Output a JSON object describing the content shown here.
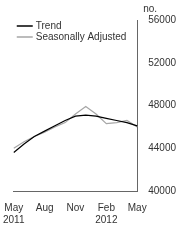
{
  "chart_data": {
    "type": "line",
    "y_label": "no.",
    "categories": [
      "May 2011",
      null,
      null,
      "Aug",
      null,
      null,
      "Nov",
      null,
      null,
      "Feb 2012",
      null,
      null,
      "May"
    ],
    "series": [
      {
        "name": "Trend",
        "color": "#000000",
        "values": [
          43600,
          44400,
          45100,
          45600,
          46100,
          46600,
          47000,
          47100,
          47000,
          46800,
          46600,
          46400,
          46100
        ]
      },
      {
        "name": "Seasonally Adjusted",
        "color": "#a6a6a6",
        "values": [
          44000,
          44600,
          45100,
          45500,
          46000,
          46400,
          47200,
          47900,
          47200,
          46300,
          46400,
          46600,
          46000
        ]
      }
    ],
    "ylim": [
      40000,
      56000
    ],
    "yticks": [
      40000,
      44000,
      48000,
      52000,
      56000
    ],
    "grid": false,
    "legend": "top-left"
  }
}
